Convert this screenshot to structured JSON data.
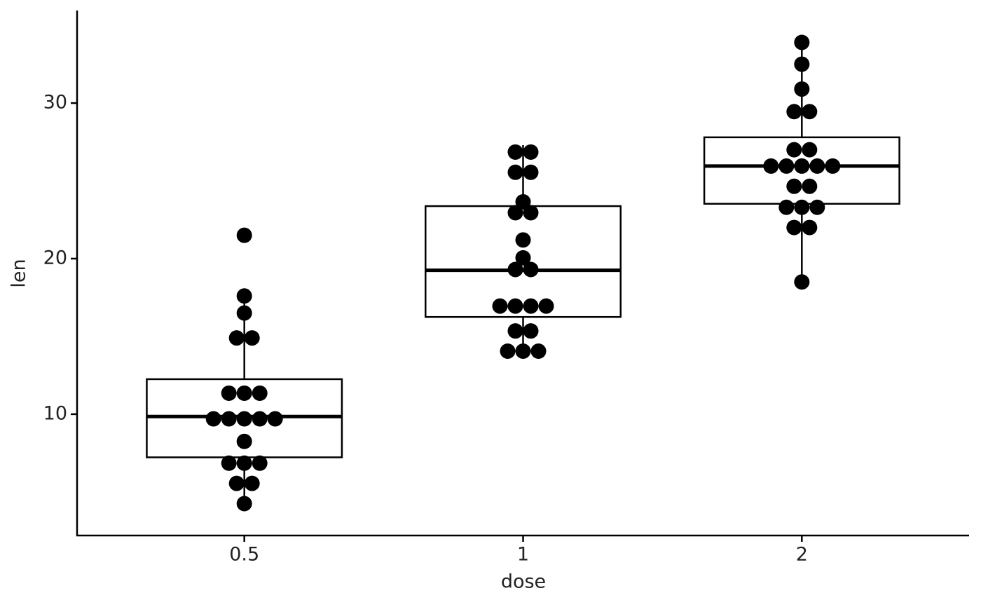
{
  "chart_data": {
    "type": "box",
    "x_label": "dose",
    "y_label": "len",
    "categories": [
      "0.5",
      "1",
      "2"
    ],
    "boxes": [
      {
        "whisker_low": 4.2,
        "q1": 7.225,
        "median": 9.85,
        "q3": 12.25,
        "whisker_high": 17.6
      },
      {
        "whisker_low": 13.6,
        "q1": 16.25,
        "median": 19.25,
        "q3": 23.375,
        "whisker_high": 27.3
      },
      {
        "whisker_low": 18.5,
        "q1": 23.525,
        "median": 25.95,
        "q3": 27.8,
        "whisker_high": 33.9
      }
    ],
    "dots": [
      [
        21.5,
        17.6,
        16.5,
        14.9,
        14.9,
        11.35,
        11.35,
        11.35,
        9.7,
        9.7,
        9.7,
        9.7,
        9.7,
        8.25,
        6.85,
        6.85,
        6.85,
        5.55,
        5.55,
        4.25
      ],
      [
        26.85,
        26.85,
        25.55,
        25.55,
        23.65,
        22.95,
        22.95,
        21.2,
        20.05,
        19.3,
        19.3,
        16.95,
        16.95,
        16.95,
        16.95,
        15.35,
        15.35,
        14.05,
        14.05,
        14.05
      ],
      [
        33.9,
        32.5,
        30.9,
        29.45,
        29.45,
        27.0,
        27.0,
        25.95,
        25.95,
        25.95,
        25.95,
        25.95,
        24.65,
        24.65,
        23.3,
        23.3,
        23.3,
        22.0,
        22.0,
        18.5
      ]
    ],
    "color": "#000000",
    "box_fill": "#ffffff",
    "ylim": [
      2.2,
      35.95
    ],
    "yticks": [
      10,
      20,
      30
    ],
    "grid": false
  }
}
